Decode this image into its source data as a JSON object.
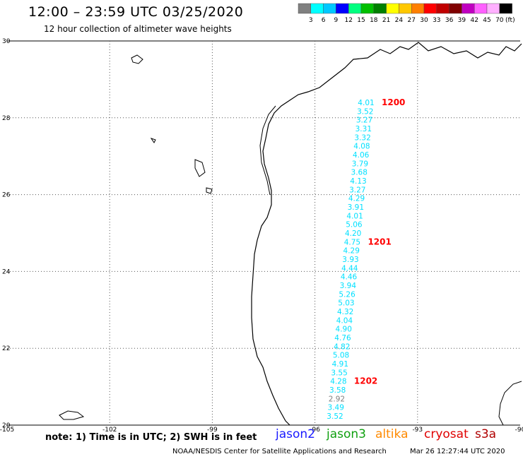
{
  "title": "12:00 – 23:59 UTC 03/25/2020",
  "subtitle": "12 hour collection of altimeter wave heights",
  "color_scale": {
    "ticks": [
      "3",
      "6",
      "9",
      "12",
      "15",
      "18",
      "21",
      "24",
      "27",
      "30",
      "33",
      "36",
      "39",
      "42",
      "45",
      "70"
    ],
    "unit": "(ft)",
    "colors": [
      "#808080",
      "#00ffff",
      "#00c8ff",
      "#0000ff",
      "#00ff80",
      "#00c000",
      "#008000",
      "#ffff00",
      "#ffc800",
      "#ff8000",
      "#ff0000",
      "#c00000",
      "#800000",
      "#c000c0",
      "#ff60ff",
      "#ffb0ff",
      "#000000"
    ]
  },
  "footer": {
    "note": "note: 1) Time is in UTC; 2) SWH is in feet",
    "missions": [
      {
        "label": "jason2",
        "color": "#1a1aff"
      },
      {
        "label": "jason3",
        "color": "#10a010"
      },
      {
        "label": "altika",
        "color": "#ff8a00"
      },
      {
        "label": "cryosat",
        "color": "#e00000"
      },
      {
        "label": "s3a",
        "color": "#b00000"
      }
    ],
    "credit": "NOAA/NESDIS Center for Satellite Applications and Research",
    "timestamp": "Mar 26 12:27:44 UTC 2020"
  },
  "chart_data": {
    "type": "scatter",
    "map_extent": {
      "lon": [
        -105,
        -90
      ],
      "lat": [
        20,
        30
      ]
    },
    "x_ticks": [
      "-105",
      "-102",
      "-99",
      "-96",
      "-93",
      "-90"
    ],
    "y_ticks": [
      "30",
      "28",
      "26",
      "24",
      "22",
      "20"
    ],
    "grid": true,
    "series": [
      {
        "color": "#00e0ff",
        "values": [
          4.01,
          3.52,
          3.27,
          3.31,
          3.32,
          4.08,
          4.06,
          3.79,
          3.68,
          4.13,
          3.27,
          4.29,
          3.91,
          4.01,
          5.06,
          4.2,
          4.75,
          4.29,
          3.93,
          4.44,
          4.46,
          3.94,
          5.26,
          5.03,
          4.32,
          4.04,
          4.9,
          4.76,
          4.82,
          5.08,
          4.91,
          3.55,
          4.28,
          3.58,
          2.92,
          3.49,
          3.52
        ]
      }
    ],
    "value_colors": {
      "default": "#00e0ff",
      "index_34": "#808080"
    },
    "time_labels": [
      {
        "label": "1200",
        "color": "#ff0000",
        "index": 0
      },
      {
        "label": "1201",
        "color": "#ff0000",
        "index": 16
      },
      {
        "label": "1202",
        "color": "#ff0000",
        "index": 32
      }
    ]
  }
}
